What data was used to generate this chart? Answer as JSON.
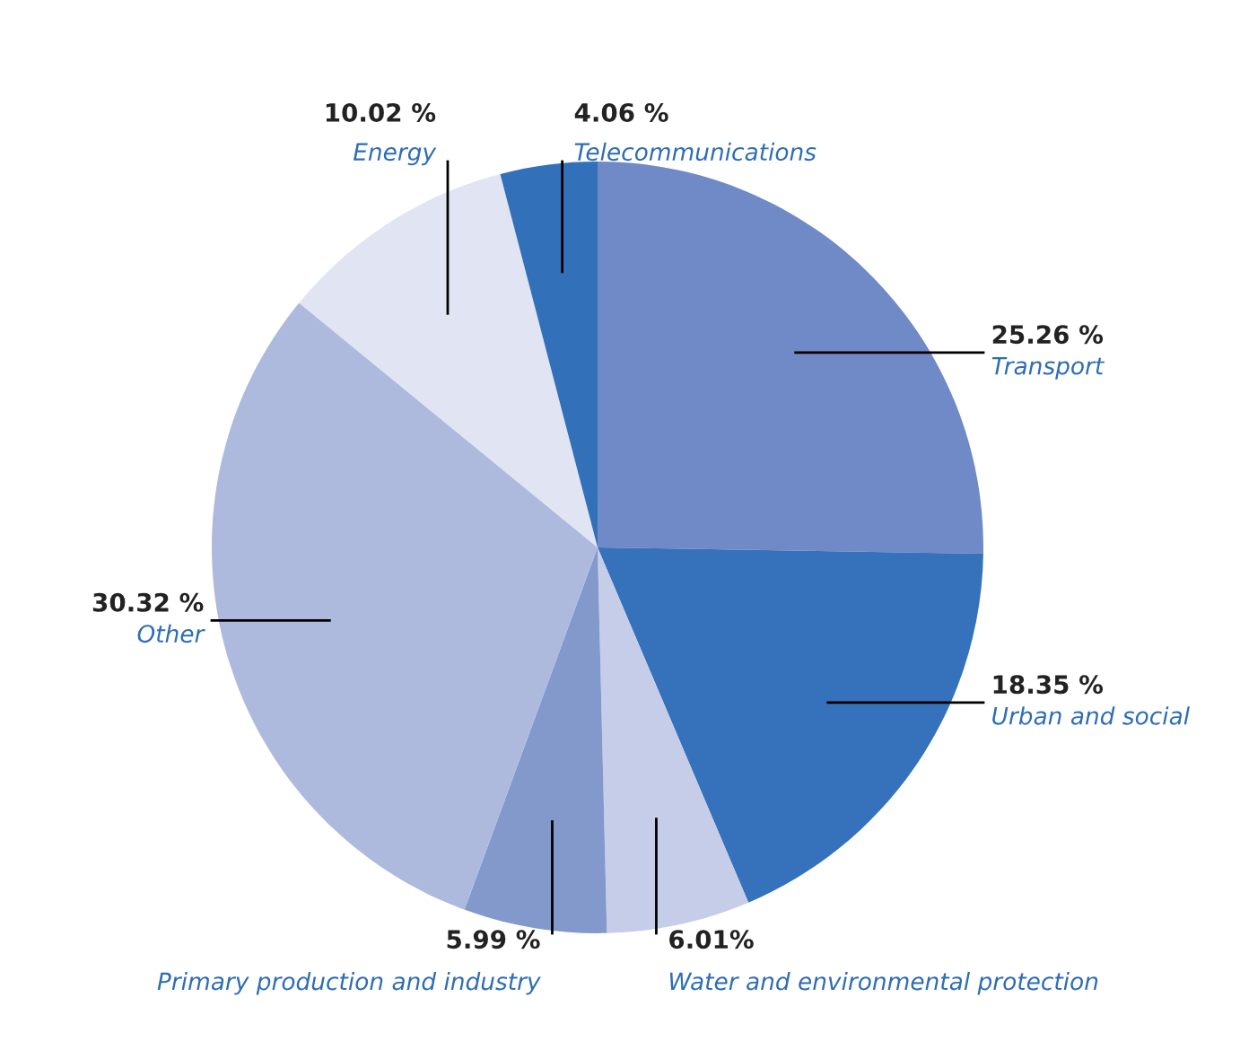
{
  "chart_data": {
    "type": "pie",
    "categories": [
      "Transport",
      "Urban and social",
      "Water and environmental protection",
      "Primary production and industry",
      "Other",
      "Energy",
      "Telecommunications"
    ],
    "values": [
      25.26,
      18.35,
      6.01,
      5.99,
      30.32,
      10.02,
      4.06
    ],
    "value_labels": [
      "25.26 %",
      "18.35 %",
      "6.01%",
      "5.99 %",
      "30.32 %",
      "10.02 %",
      "4.06 %"
    ],
    "colors": [
      "#6f8ac6",
      "#3572bb",
      "#c5cde8",
      "#8399cc",
      "#aeb9de",
      "#e0e4f3",
      "#3370ba"
    ]
  }
}
